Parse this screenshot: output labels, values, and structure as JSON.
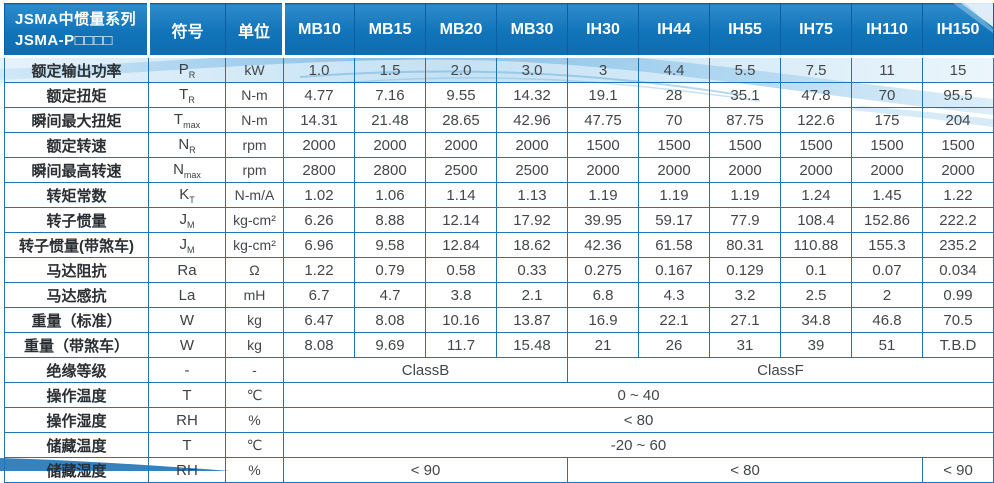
{
  "title": {
    "line1": "JSMA中惯量系列",
    "line2": "JSMA-P□□□□"
  },
  "header": {
    "symbol": "符号",
    "unit": "单位",
    "models": [
      "MB10",
      "MB15",
      "MB20",
      "MB30",
      "IH30",
      "IH44",
      "IH55",
      "IH75",
      "IH110",
      "IH150"
    ]
  },
  "rows": [
    {
      "label": "额定输出功率",
      "sym": {
        "main": "P",
        "sub": "R"
      },
      "unit": "kW",
      "values": [
        "1.0",
        "1.5",
        "2.0",
        "3.0",
        "3",
        "4.4",
        "5.5",
        "7.5",
        "11",
        "15"
      ]
    },
    {
      "label": "额定扭矩",
      "sym": {
        "main": "T",
        "sub": "R"
      },
      "unit": "N-m",
      "values": [
        "4.77",
        "7.16",
        "9.55",
        "14.32",
        "19.1",
        "28",
        "35.1",
        "47.8",
        "70",
        "95.5"
      ]
    },
    {
      "label": "瞬间最大扭矩",
      "sym": {
        "main": "T",
        "sub": "max"
      },
      "unit": "N-m",
      "values": [
        "14.31",
        "21.48",
        "28.65",
        "42.96",
        "47.75",
        "70",
        "87.75",
        "122.6",
        "175",
        "204"
      ]
    },
    {
      "label": "额定转速",
      "sym": {
        "main": "N",
        "sub": "R"
      },
      "unit": "rpm",
      "values": [
        "2000",
        "2000",
        "2000",
        "2000",
        "1500",
        "1500",
        "1500",
        "1500",
        "1500",
        "1500"
      ]
    },
    {
      "label": "瞬间最高转速",
      "sym": {
        "main": "N",
        "sub": "max"
      },
      "unit": "rpm",
      "values": [
        "2800",
        "2800",
        "2500",
        "2500",
        "2000",
        "2000",
        "2000",
        "2000",
        "2000",
        "2000"
      ]
    },
    {
      "label": "转矩常数",
      "sym": {
        "main": "K",
        "sub": "T"
      },
      "unit": "N-m/A",
      "values": [
        "1.02",
        "1.06",
        "1.14",
        "1.13",
        "1.19",
        "1.19",
        "1.19",
        "1.24",
        "1.45",
        "1.22"
      ]
    },
    {
      "label": "转子惯量",
      "sym": {
        "main": "J",
        "sub": "M"
      },
      "unit": "kg-cm²",
      "values": [
        "6.26",
        "8.88",
        "12.14",
        "17.92",
        "39.95",
        "59.17",
        "77.9",
        "108.4",
        "152.86",
        "222.2"
      ]
    },
    {
      "label": "转子惯量(带煞车)",
      "sym": {
        "main": "J",
        "sub": "M"
      },
      "unit": "kg-cm²",
      "values": [
        "6.96",
        "9.58",
        "12.84",
        "18.62",
        "42.36",
        "61.58",
        "80.31",
        "110.88",
        "155.3",
        "235.2"
      ]
    },
    {
      "label": "马达阻抗",
      "sym": {
        "main": "Ra",
        "sub": ""
      },
      "unit": "Ω",
      "values": [
        "1.22",
        "0.79",
        "0.58",
        "0.33",
        "0.275",
        "0.167",
        "0.129",
        "0.1",
        "0.07",
        "0.034"
      ]
    },
    {
      "label": "马达感抗",
      "sym": {
        "main": "La",
        "sub": ""
      },
      "unit": "mH",
      "values": [
        "6.7",
        "4.7",
        "3.8",
        "2.1",
        "6.8",
        "4.3",
        "3.2",
        "2.5",
        "2",
        "0.99"
      ]
    },
    {
      "label": "重量（标准）",
      "sym": {
        "main": "W",
        "sub": ""
      },
      "unit": "kg",
      "values": [
        "6.47",
        "8.08",
        "10.16",
        "13.87",
        "16.9",
        "22.1",
        "27.1",
        "34.8",
        "46.8",
        "70.5"
      ]
    },
    {
      "label": "重量（带煞车）",
      "sym": {
        "main": "W",
        "sub": ""
      },
      "unit": "kg",
      "values": [
        "8.08",
        "9.69",
        "11.7",
        "15.48",
        "21",
        "26",
        "31",
        "39",
        "51",
        "T.B.D"
      ]
    }
  ],
  "merged_rows": [
    {
      "label": "绝缘等级",
      "sym": "-",
      "unit": "-",
      "cells": [
        {
          "text": "ClassB",
          "span": 4
        },
        {
          "text": "ClassF",
          "span": 6
        }
      ]
    },
    {
      "label": "操作温度",
      "sym": "T",
      "unit": "℃",
      "cells": [
        {
          "text": "0 ~ 40",
          "span": 10
        }
      ]
    },
    {
      "label": "操作湿度",
      "sym": "RH",
      "unit": "%",
      "cells": [
        {
          "text": "< 80",
          "span": 10
        }
      ]
    },
    {
      "label": "储藏温度",
      "sym": "T",
      "unit": "℃",
      "cells": [
        {
          "text": "-20 ~ 60",
          "span": 10
        }
      ]
    },
    {
      "label": "储藏湿度",
      "sym": "RH",
      "unit": "%",
      "cells": [
        {
          "text": "< 90",
          "span": 4
        },
        {
          "text": "< 80",
          "span": 5
        },
        {
          "text": "< 90",
          "span": 1
        }
      ]
    }
  ],
  "colors": {
    "header_blue": "#1173b8",
    "header_divider_blue": "#0a5fa4",
    "grid_blue": "#2273b5",
    "wave_light_blue": "#cde6f6",
    "wave_mid_blue": "#8fc4e9",
    "text_dark": "#43474c"
  }
}
